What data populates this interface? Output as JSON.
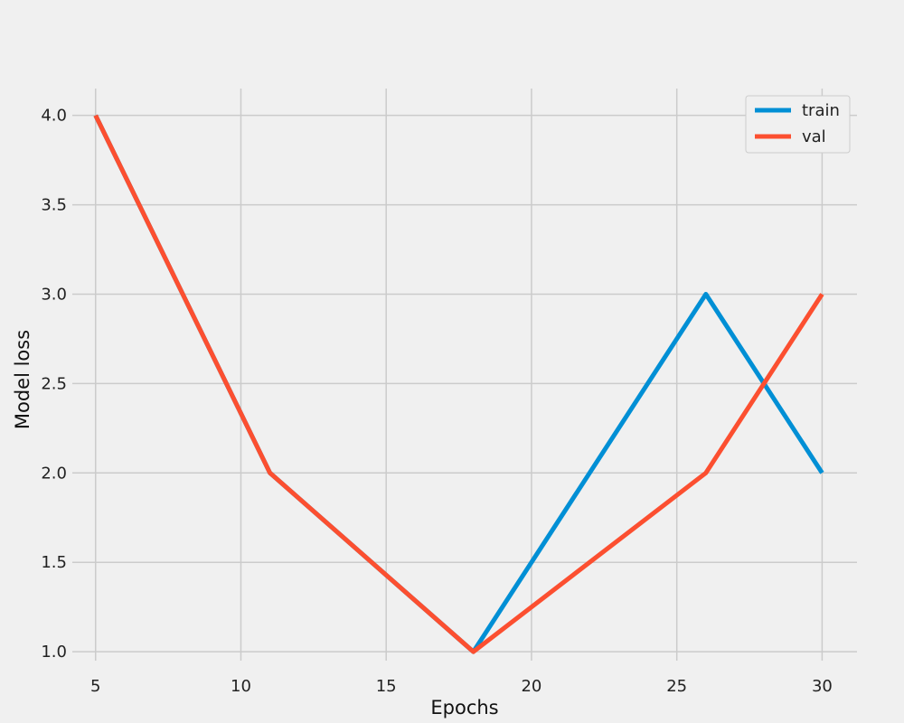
{
  "chart_data": {
    "type": "line",
    "title": "",
    "xlabel": "Epochs",
    "ylabel": "Model loss",
    "xlim": [
      4.2,
      31.2
    ],
    "ylim": [
      0.95,
      4.15
    ],
    "xticks": [
      5,
      10,
      15,
      20,
      25,
      30
    ],
    "xtick_labels": [
      "5",
      "10",
      "15",
      "20",
      "25",
      "30"
    ],
    "yticks": [
      1.0,
      1.5,
      2.0,
      2.5,
      3.0,
      3.5,
      4.0
    ],
    "ytick_labels": [
      "1.0",
      "1.5",
      "2.0",
      "2.5",
      "3.0",
      "3.5",
      "4.0"
    ],
    "grid": true,
    "legend_position": "top-right",
    "background_color": "#f0f0f0",
    "grid_color": "#cbcbcb",
    "series": [
      {
        "name": "train",
        "color": "#008fd5",
        "x": [
          5,
          11,
          18,
          26,
          30
        ],
        "y": [
          4,
          2,
          1,
          3,
          2
        ]
      },
      {
        "name": "val",
        "color": "#fc4f30",
        "x": [
          5,
          11,
          18,
          26,
          30
        ],
        "y": [
          4,
          2,
          1,
          2,
          3
        ]
      }
    ]
  }
}
